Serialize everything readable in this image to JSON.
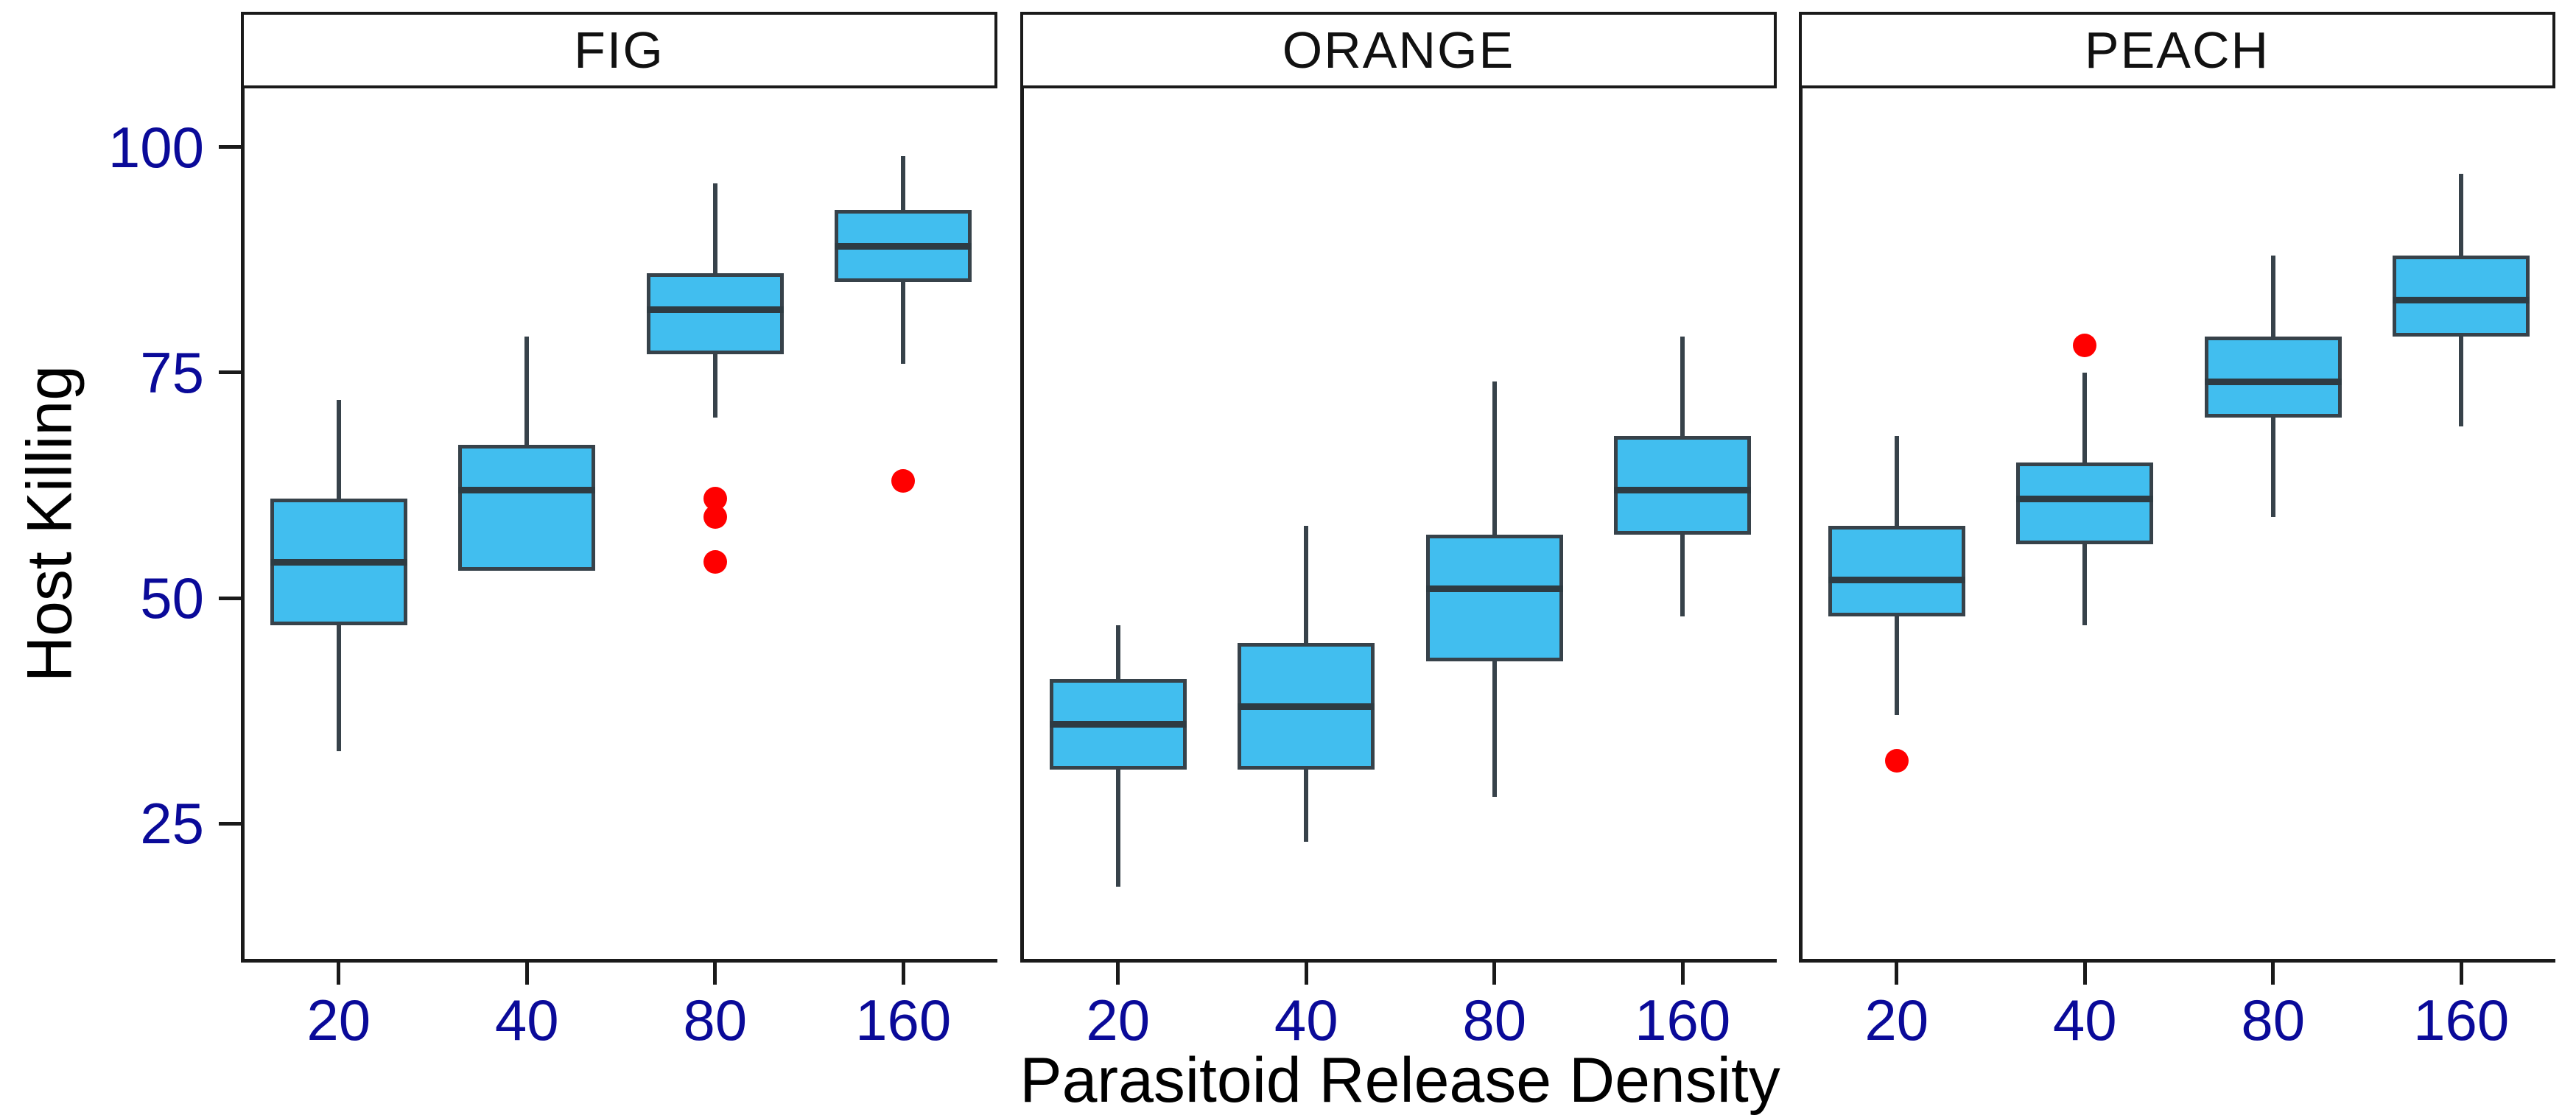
{
  "chart_data": {
    "type": "boxplot",
    "title": "",
    "xlabel": "Parasitoid Release Density",
    "ylabel": "Host Killing",
    "categories": [
      "20",
      "40",
      "80",
      "160"
    ],
    "y_ticks": [
      100,
      75,
      50,
      25
    ],
    "ylim": [
      10,
      106.5
    ],
    "grid": false,
    "legend": null,
    "facets": [
      {
        "label": "FIG",
        "boxes": [
          {
            "category": "20",
            "whisker_low": 33,
            "q1": 47,
            "median": 54,
            "q3": 61,
            "whisker_high": 72,
            "outliers": []
          },
          {
            "category": "40",
            "whisker_low": 53,
            "q1": 53,
            "median": 62,
            "q3": 67,
            "whisker_high": 79,
            "outliers": []
          },
          {
            "category": "80",
            "whisker_low": 70,
            "q1": 77,
            "median": 82,
            "q3": 86,
            "whisker_high": 96,
            "outliers": [
              61,
              59,
              54
            ]
          },
          {
            "category": "160",
            "whisker_low": 76,
            "q1": 85,
            "median": 89,
            "q3": 93,
            "whisker_high": 99,
            "outliers": [
              63
            ]
          }
        ]
      },
      {
        "label": "ORANGE",
        "boxes": [
          {
            "category": "20",
            "whisker_low": 18,
            "q1": 31,
            "median": 36,
            "q3": 41,
            "whisker_high": 47,
            "outliers": []
          },
          {
            "category": "40",
            "whisker_low": 23,
            "q1": 31,
            "median": 38,
            "q3": 45,
            "whisker_high": 58,
            "outliers": []
          },
          {
            "category": "80",
            "whisker_low": 28,
            "q1": 43,
            "median": 51,
            "q3": 57,
            "whisker_high": 74,
            "outliers": []
          },
          {
            "category": "160",
            "whisker_low": 48,
            "q1": 57,
            "median": 62,
            "q3": 68,
            "whisker_high": 79,
            "outliers": []
          }
        ]
      },
      {
        "label": "PEACH",
        "boxes": [
          {
            "category": "20",
            "whisker_low": 37,
            "q1": 48,
            "median": 52,
            "q3": 58,
            "whisker_high": 68,
            "outliers": [
              32
            ]
          },
          {
            "category": "40",
            "whisker_low": 47,
            "q1": 56,
            "median": 61,
            "q3": 65,
            "whisker_high": 75,
            "outliers": [
              78
            ]
          },
          {
            "category": "80",
            "whisker_low": 59,
            "q1": 70,
            "median": 74,
            "q3": 79,
            "whisker_high": 88,
            "outliers": []
          },
          {
            "category": "160",
            "whisker_low": 69,
            "q1": 79,
            "median": 83,
            "q3": 88,
            "whisker_high": 97,
            "outliers": []
          }
        ]
      }
    ],
    "colors": {
      "box_fill": "#41BEEF",
      "box_stroke": "#37424A",
      "median_line": "#2E3B42",
      "outlier": "#FF0000",
      "tick_label": "#0A0A99",
      "axis_line": "#1A1A1A",
      "axis_title": "#000000",
      "strip_text": "#111111",
      "strip_border": "#1A1A1A",
      "background": "#FFFFFF"
    }
  }
}
